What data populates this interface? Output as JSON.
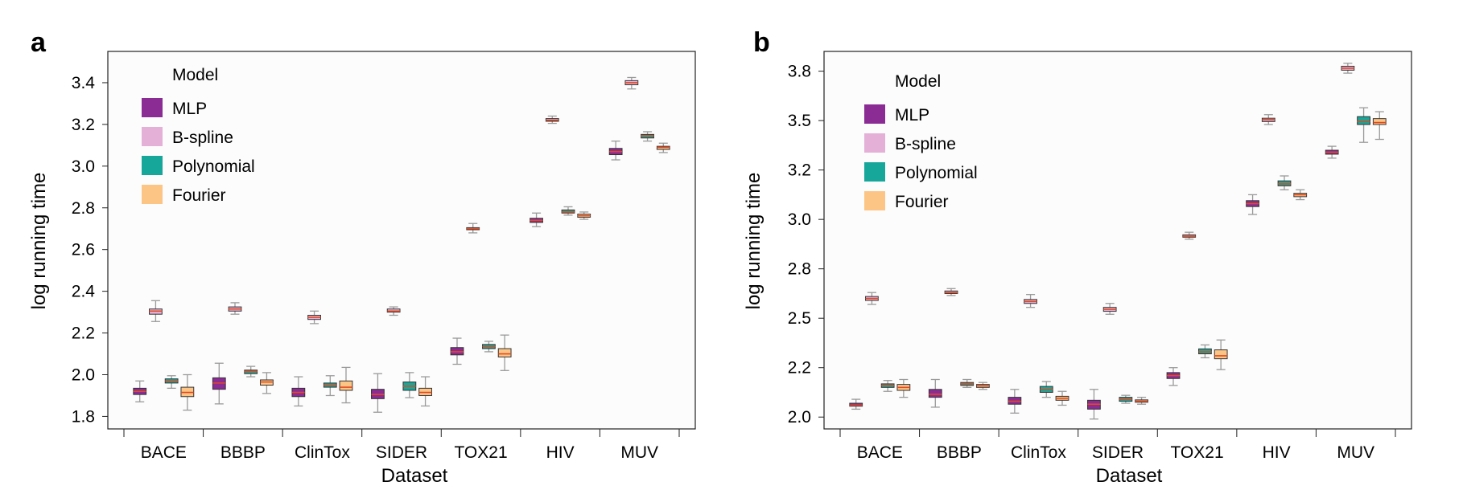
{
  "legend_title": "Model",
  "colors": {
    "MLP": "#8b2c95",
    "B-spline": "#e5b0d8",
    "Polynomial": "#17a69a",
    "Fourier": "#fdc585",
    "median": "#e04a22",
    "whisker": "#9a9a9a",
    "box_edge": "#333333"
  },
  "chart_data": [
    {
      "panel_label": "a",
      "type": "box",
      "xlabel": "Dataset",
      "ylabel": "log running time",
      "categories": [
        "BACE",
        "BBBP",
        "ClinTox",
        "SIDER",
        "TOX21",
        "HIV",
        "MUV"
      ],
      "ylim": [
        1.74,
        3.55
      ],
      "yticks": [
        1.8,
        2.0,
        2.2,
        2.4,
        2.6,
        2.8,
        3.0,
        3.2,
        3.4
      ],
      "ytick_labels": [
        "1.8",
        "2.0",
        "2.2",
        "2.4",
        "2.6",
        "2.8",
        "3.0",
        "3.2",
        "3.4"
      ],
      "grid": false,
      "legend_position": "top-left",
      "series": [
        {
          "name": "MLP",
          "boxes": [
            {
              "min": 1.87,
              "q1": 1.905,
              "median": 1.92,
              "q3": 1.935,
              "max": 1.97
            },
            {
              "min": 1.86,
              "q1": 1.93,
              "median": 1.96,
              "q3": 1.985,
              "max": 2.055
            },
            {
              "min": 1.85,
              "q1": 1.895,
              "median": 1.915,
              "q3": 1.935,
              "max": 1.99
            },
            {
              "min": 1.82,
              "q1": 1.885,
              "median": 1.905,
              "q3": 1.93,
              "max": 2.005
            },
            {
              "min": 2.05,
              "q1": 2.095,
              "median": 2.11,
              "q3": 2.13,
              "max": 2.175
            },
            {
              "min": 2.71,
              "q1": 2.73,
              "median": 2.74,
              "q3": 2.75,
              "max": 2.775
            },
            {
              "min": 3.03,
              "q1": 3.055,
              "median": 3.07,
              "q3": 3.085,
              "max": 3.12
            }
          ]
        },
        {
          "name": "B-spline",
          "boxes": [
            {
              "min": 2.255,
              "q1": 2.29,
              "median": 2.305,
              "q3": 2.315,
              "max": 2.355
            },
            {
              "min": 2.29,
              "q1": 2.305,
              "median": 2.315,
              "q3": 2.325,
              "max": 2.345
            },
            {
              "min": 2.245,
              "q1": 2.265,
              "median": 2.275,
              "q3": 2.285,
              "max": 2.305
            },
            {
              "min": 2.285,
              "q1": 2.3,
              "median": 2.305,
              "q3": 2.315,
              "max": 2.325
            },
            {
              "min": 2.68,
              "q1": 2.695,
              "median": 2.7,
              "q3": 2.705,
              "max": 2.725
            },
            {
              "min": 3.205,
              "q1": 3.215,
              "median": 3.22,
              "q3": 3.228,
              "max": 3.24
            },
            {
              "min": 3.37,
              "q1": 3.39,
              "median": 3.4,
              "q3": 3.41,
              "max": 3.425
            }
          ]
        },
        {
          "name": "Polynomial",
          "boxes": [
            {
              "min": 1.935,
              "q1": 1.96,
              "median": 1.97,
              "q3": 1.98,
              "max": 1.995
            },
            {
              "min": 1.99,
              "q1": 2.005,
              "median": 2.015,
              "q3": 2.022,
              "max": 2.04
            },
            {
              "min": 1.9,
              "q1": 1.94,
              "median": 1.95,
              "q3": 1.96,
              "max": 1.995
            },
            {
              "min": 1.89,
              "q1": 1.925,
              "median": 1.945,
              "q3": 1.965,
              "max": 2.01
            },
            {
              "min": 2.11,
              "q1": 2.125,
              "median": 2.135,
              "q3": 2.145,
              "max": 2.16
            },
            {
              "min": 2.765,
              "q1": 2.775,
              "median": 2.78,
              "q3": 2.79,
              "max": 2.805
            },
            {
              "min": 3.12,
              "q1": 3.135,
              "median": 3.145,
              "q3": 3.152,
              "max": 3.165
            }
          ]
        },
        {
          "name": "Fourier",
          "boxes": [
            {
              "min": 1.83,
              "q1": 1.895,
              "median": 1.915,
              "q3": 1.94,
              "max": 2.0
            },
            {
              "min": 1.91,
              "q1": 1.95,
              "median": 1.965,
              "q3": 1.975,
              "max": 2.01
            },
            {
              "min": 1.865,
              "q1": 1.925,
              "median": 1.94,
              "q3": 1.97,
              "max": 2.035
            },
            {
              "min": 1.85,
              "q1": 1.9,
              "median": 1.915,
              "q3": 1.935,
              "max": 1.99
            },
            {
              "min": 2.02,
              "q1": 2.085,
              "median": 2.1,
              "q3": 2.125,
              "max": 2.19
            },
            {
              "min": 2.745,
              "q1": 2.755,
              "median": 2.762,
              "q3": 2.77,
              "max": 2.78
            },
            {
              "min": 3.065,
              "q1": 3.08,
              "median": 3.09,
              "q3": 3.095,
              "max": 3.11
            }
          ]
        }
      ]
    },
    {
      "panel_label": "b",
      "type": "box",
      "xlabel": "Dataset",
      "ylabel": "log running time",
      "categories": [
        "BACE",
        "BBBP",
        "ClinTox",
        "SIDER",
        "TOX21",
        "HIV",
        "MUV"
      ],
      "ylim": [
        1.94,
        3.85
      ],
      "yticks": [
        2.0,
        2.25,
        2.5,
        2.75,
        3.0,
        3.25,
        3.5,
        3.75
      ],
      "ytick_labels": [
        "2.0",
        "2.2",
        "2.5",
        "2.8",
        "3.0",
        "3.2",
        "3.5",
        "3.8"
      ],
      "grid": false,
      "legend_position": "top-left",
      "series": [
        {
          "name": "MLP",
          "boxes": [
            {
              "min": 2.04,
              "q1": 2.055,
              "median": 2.06,
              "q3": 2.07,
              "max": 2.09
            },
            {
              "min": 2.05,
              "q1": 2.1,
              "median": 2.115,
              "q3": 2.14,
              "max": 2.19
            },
            {
              "min": 2.02,
              "q1": 2.065,
              "median": 2.08,
              "q3": 2.1,
              "max": 2.14
            },
            {
              "min": 1.99,
              "q1": 2.04,
              "median": 2.065,
              "q3": 2.085,
              "max": 2.14
            },
            {
              "min": 2.16,
              "q1": 2.195,
              "median": 2.21,
              "q3": 2.225,
              "max": 2.25
            },
            {
              "min": 3.025,
              "q1": 3.065,
              "median": 3.08,
              "q3": 3.095,
              "max": 3.125
            },
            {
              "min": 3.31,
              "q1": 3.33,
              "median": 3.34,
              "q3": 3.35,
              "max": 3.37
            }
          ]
        },
        {
          "name": "B-spline",
          "boxes": [
            {
              "min": 2.57,
              "q1": 2.59,
              "median": 2.6,
              "q3": 2.61,
              "max": 2.63
            },
            {
              "min": 2.615,
              "q1": 2.625,
              "median": 2.63,
              "q3": 2.638,
              "max": 2.65
            },
            {
              "min": 2.555,
              "q1": 2.575,
              "median": 2.585,
              "q3": 2.595,
              "max": 2.62
            },
            {
              "min": 2.52,
              "q1": 2.535,
              "median": 2.545,
              "q3": 2.555,
              "max": 2.575
            },
            {
              "min": 2.9,
              "q1": 2.91,
              "median": 2.915,
              "q3": 2.922,
              "max": 2.935
            },
            {
              "min": 3.48,
              "q1": 3.495,
              "median": 3.505,
              "q3": 3.512,
              "max": 3.53
            },
            {
              "min": 3.74,
              "q1": 3.755,
              "median": 3.765,
              "q3": 3.775,
              "max": 3.79
            }
          ]
        },
        {
          "name": "Polynomial",
          "boxes": [
            {
              "min": 2.13,
              "q1": 2.15,
              "median": 2.16,
              "q3": 2.168,
              "max": 2.185
            },
            {
              "min": 2.15,
              "q1": 2.16,
              "median": 2.168,
              "q3": 2.175,
              "max": 2.19
            },
            {
              "min": 2.1,
              "q1": 2.125,
              "median": 2.14,
              "q3": 2.155,
              "max": 2.18
            },
            {
              "min": 2.07,
              "q1": 2.08,
              "median": 2.09,
              "q3": 2.1,
              "max": 2.11
            },
            {
              "min": 2.3,
              "q1": 2.32,
              "median": 2.33,
              "q3": 2.345,
              "max": 2.365
            },
            {
              "min": 3.15,
              "q1": 3.17,
              "median": 3.18,
              "q3": 3.195,
              "max": 3.22
            },
            {
              "min": 3.39,
              "q1": 3.48,
              "median": 3.495,
              "q3": 3.52,
              "max": 3.565
            }
          ]
        },
        {
          "name": "Fourier",
          "boxes": [
            {
              "min": 2.1,
              "q1": 2.135,
              "median": 2.15,
              "q3": 2.165,
              "max": 2.19
            },
            {
              "min": 2.14,
              "q1": 2.15,
              "median": 2.158,
              "q3": 2.165,
              "max": 2.175
            },
            {
              "min": 2.06,
              "q1": 2.085,
              "median": 2.095,
              "q3": 2.105,
              "max": 2.13
            },
            {
              "min": 2.065,
              "q1": 2.075,
              "median": 2.08,
              "q3": 2.087,
              "max": 2.1
            },
            {
              "min": 2.24,
              "q1": 2.295,
              "median": 2.31,
              "q3": 2.34,
              "max": 2.39
            },
            {
              "min": 3.1,
              "q1": 3.115,
              "median": 3.125,
              "q3": 3.132,
              "max": 3.15
            },
            {
              "min": 3.405,
              "q1": 3.48,
              "median": 3.49,
              "q3": 3.51,
              "max": 3.545
            }
          ]
        }
      ]
    }
  ]
}
